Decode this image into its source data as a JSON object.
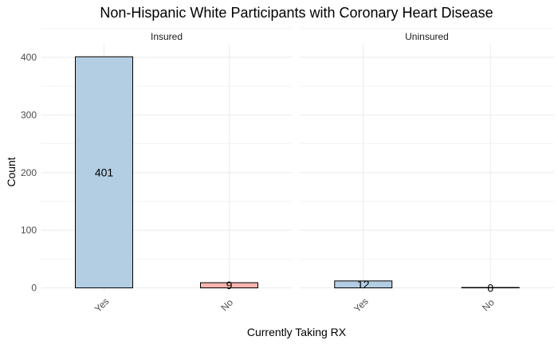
{
  "chart_data": {
    "type": "bar",
    "title": "Non-Hispanic White Participants with Coronary Heart Disease",
    "xlabel": "Currently Taking RX",
    "ylabel": "Count",
    "categories": [
      "Yes",
      "No"
    ],
    "ylim": [
      0,
      420
    ],
    "yticks": [
      0,
      100,
      200,
      300,
      400
    ],
    "grid": true,
    "legend": "none",
    "colors": {
      "Yes": "#b3cde3",
      "No": "#fbb4ae",
      "outline": "#000000"
    },
    "panels": [
      {
        "name": "Insured",
        "values": [
          401,
          9
        ]
      },
      {
        "name": "Uninsured",
        "values": [
          12,
          0
        ]
      }
    ]
  }
}
